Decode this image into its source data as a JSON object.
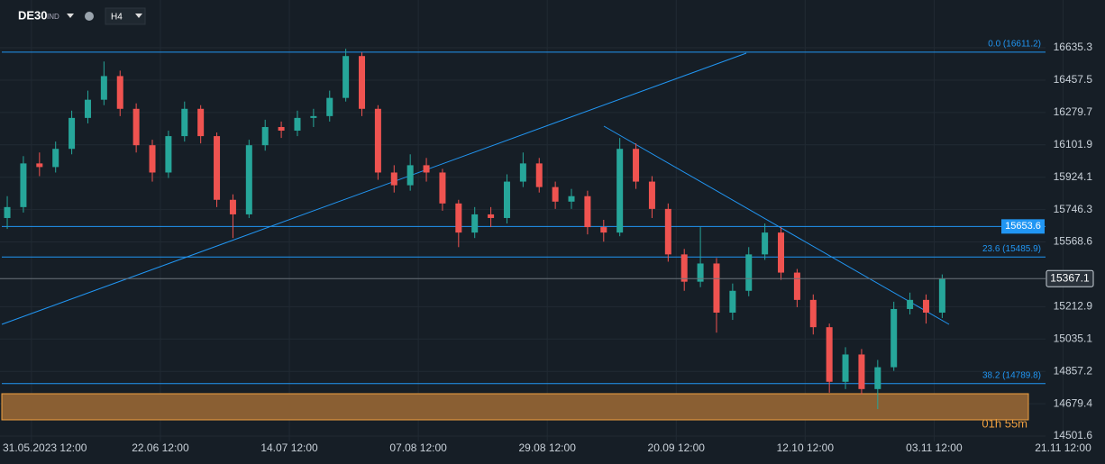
{
  "chart_data": {
    "type": "candlestick",
    "symbol": "DE30",
    "market": "IND",
    "timeframe": "H4",
    "countdown": "01h 55m",
    "x": [
      -3,
      -1,
      1,
      3,
      5,
      7,
      9,
      11,
      13,
      15,
      17,
      19,
      21,
      23,
      25,
      27,
      29,
      31,
      33,
      35,
      37,
      39,
      41,
      43,
      45,
      47,
      49,
      51,
      53,
      55,
      57,
      59,
      61,
      63,
      65,
      67,
      69,
      71,
      73,
      75,
      77,
      79,
      81,
      83,
      85,
      87,
      89,
      91,
      93,
      95,
      97,
      99,
      101,
      103,
      105,
      107,
      109,
      111,
      113
    ],
    "open": [
      15700,
      15760,
      16000,
      15980,
      16080,
      16250,
      16350,
      16480,
      16300,
      16100,
      15950,
      16150,
      16300,
      16150,
      15800,
      15720,
      16100,
      16200,
      16180,
      16250,
      16260,
      16360,
      16590,
      16300,
      15950,
      15880,
      15990,
      15950,
      15780,
      15620,
      15720,
      15700,
      15900,
      16000,
      15870,
      15790,
      15820,
      15650,
      15620,
      16080,
      15900,
      15750,
      15500,
      15350,
      15450,
      15180,
      15300,
      15500,
      15620,
      15400,
      15250,
      15100,
      14800,
      14950,
      14760,
      14880,
      15200,
      15250,
      15180
    ],
    "high": [
      15820,
      16040,
      16060,
      16120,
      16290,
      16400,
      16560,
      16510,
      16330,
      16130,
      16180,
      16340,
      16320,
      16170,
      15830,
      16130,
      16240,
      16230,
      16290,
      16300,
      16400,
      16630,
      16610,
      16320,
      15990,
      16050,
      16030,
      15970,
      15800,
      15760,
      15760,
      15940,
      16060,
      16030,
      15900,
      15860,
      15850,
      15690,
      16140,
      16110,
      15930,
      15780,
      15530,
      15650,
      15480,
      15340,
      15540,
      15670,
      15650,
      15420,
      15280,
      15120,
      14990,
      14980,
      14920,
      15240,
      15290,
      15280,
      15390
    ],
    "low": [
      15640,
      15730,
      15930,
      15950,
      16050,
      16220,
      16320,
      16260,
      16060,
      15900,
      15920,
      16120,
      16110,
      15760,
      15590,
      15700,
      16070,
      16140,
      16150,
      16200,
      16230,
      16340,
      16260,
      15910,
      15840,
      15850,
      15900,
      15740,
      15540,
      15590,
      15650,
      15670,
      15870,
      15840,
      15750,
      15750,
      15610,
      15570,
      15600,
      15860,
      15700,
      15460,
      15300,
      15320,
      15070,
      15140,
      15270,
      15470,
      15360,
      15210,
      15060,
      14740,
      14760,
      14730,
      14650,
      14860,
      15170,
      15120,
      15150
    ],
    "close": [
      15760,
      16000,
      15980,
      16080,
      16250,
      16350,
      16480,
      16300,
      16100,
      15950,
      16150,
      16300,
      16150,
      15800,
      15720,
      16100,
      16200,
      16180,
      16250,
      16260,
      16360,
      16590,
      16300,
      15950,
      15880,
      15990,
      15950,
      15780,
      15620,
      15720,
      15700,
      15900,
      16000,
      15870,
      15790,
      15820,
      15650,
      15620,
      16080,
      15900,
      15750,
      15500,
      15350,
      15450,
      15180,
      15300,
      15500,
      15620,
      15400,
      15250,
      15100,
      14800,
      14950,
      14760,
      14880,
      15200,
      15250,
      15180,
      15367.1
    ],
    "up_color": "#26a69a",
    "down_color": "#ef5350",
    "xlim": [
      -3.9,
      133.2
    ],
    "ylim": [
      14472,
      16898
    ],
    "xticks": [
      {
        "value": 0,
        "label": "31.05.2023 12:00"
      },
      {
        "value": 16,
        "label": "22.06 12:00"
      },
      {
        "value": 32,
        "label": "14.07 12:00"
      },
      {
        "value": 48,
        "label": "07.08 12:00"
      },
      {
        "value": 64,
        "label": "29.08 12:00"
      },
      {
        "value": 80,
        "label": "20.09 12:00"
      },
      {
        "value": 96,
        "label": "12.10 12:00"
      },
      {
        "value": 112,
        "label": "03.11 12:00"
      },
      {
        "value": 128,
        "label": "21.11 12:00"
      }
    ],
    "yticks": [
      16635.3,
      16457.5,
      16279.7,
      16101.9,
      15924.1,
      15746.3,
      15568.6,
      15212.9,
      15035.1,
      14857.2,
      14679.4,
      14501.6
    ],
    "grid": true,
    "hline": 15653.6,
    "fib_levels": [
      {
        "value": 16611.2,
        "label": "0.0 (16611.2)"
      },
      {
        "value": 15485.9,
        "label": "23.6 (15485.9)"
      },
      {
        "value": 14789.8,
        "label": "38.2 (14789.8)"
      }
    ]
  }
}
